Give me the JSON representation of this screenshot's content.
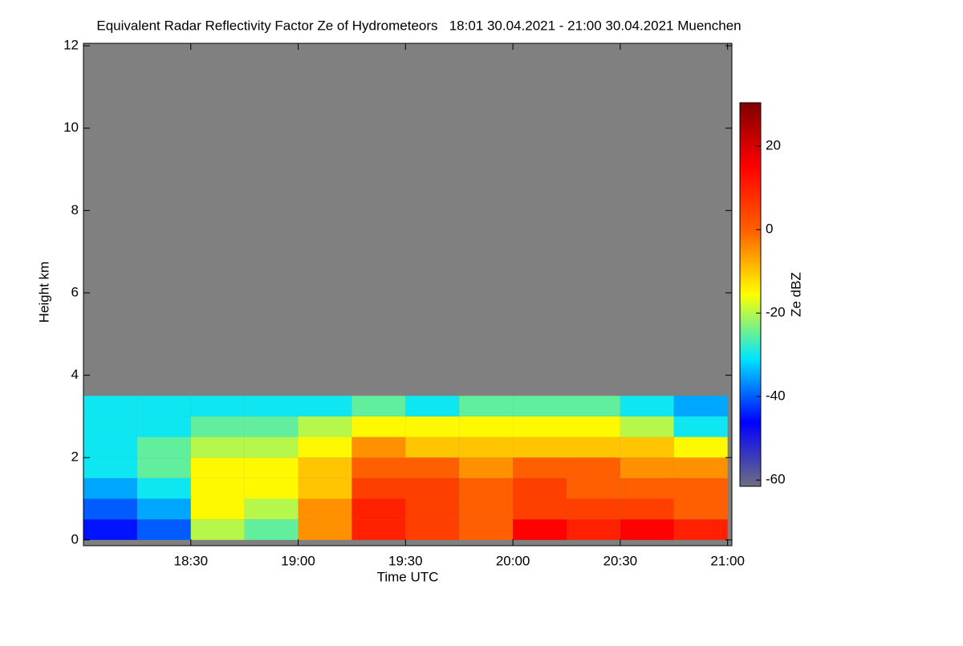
{
  "chart_data": {
    "type": "heatmap",
    "title": "Equivalent Radar Reflectivity Factor Ze of Hydrometeors   18:01 30.04.2021 - 21:00 30.04.2021 Muenchen",
    "x_label": "Time UTC",
    "y_label": "Height km",
    "colorbar_label": "Ze dBZ",
    "xlim": [
      18.0,
      21.02
    ],
    "xticks": [
      {
        "value": 18.5,
        "label": "18:30"
      },
      {
        "value": 19.0,
        "label": "19:00"
      },
      {
        "value": 19.5,
        "label": "19:30"
      },
      {
        "value": 20.0,
        "label": "20:00"
      },
      {
        "value": 20.5,
        "label": "20:30"
      },
      {
        "value": 21.0,
        "label": "21:00"
      }
    ],
    "ylim": [
      -0.14,
      12.06
    ],
    "yticks": [
      0,
      2,
      4,
      6,
      8,
      10,
      12
    ],
    "zlim": [
      -61.5,
      30.4
    ],
    "zticks": [
      -60,
      -40,
      -20,
      0,
      20
    ],
    "background_color": "#808080",
    "colormap": [
      "#6e6e80",
      "#0000ff",
      "#00e5ff",
      "#ffff00",
      "#ff6000",
      "#ff0000",
      "#800000"
    ],
    "xbins": [
      18.0,
      18.25,
      18.5,
      18.75,
      19.0,
      19.25,
      19.5,
      19.75,
      20.0,
      20.25,
      20.5,
      20.75,
      21.0
    ],
    "ybins": [
      0,
      0.5,
      1.0,
      1.5,
      2.0,
      2.5,
      3.0,
      3.5
    ],
    "z": [
      [
        -45,
        -40,
        -20,
        -25,
        -5,
        10,
        5,
        0,
        15,
        10,
        15,
        10
      ],
      [
        -40,
        -35,
        -15,
        -20,
        -5,
        10,
        5,
        0,
        5,
        5,
        5,
        0
      ],
      [
        -35,
        -30,
        -15,
        -15,
        -10,
        5,
        5,
        0,
        5,
        0,
        0,
        0
      ],
      [
        -30,
        -25,
        -15,
        -15,
        -10,
        0,
        0,
        -5,
        0,
        0,
        -5,
        -5
      ],
      [
        -30,
        -25,
        -20,
        -20,
        -15,
        -5,
        -10,
        -10,
        -10,
        -10,
        -10,
        -15
      ],
      [
        -30,
        -30,
        -25,
        -25,
        -20,
        -15,
        -15,
        -15,
        -15,
        -15,
        -20,
        -30
      ],
      [
        -30,
        -30,
        -30,
        -30,
        -30,
        -25,
        -30,
        -25,
        -25,
        -25,
        -30,
        -35
      ]
    ]
  }
}
